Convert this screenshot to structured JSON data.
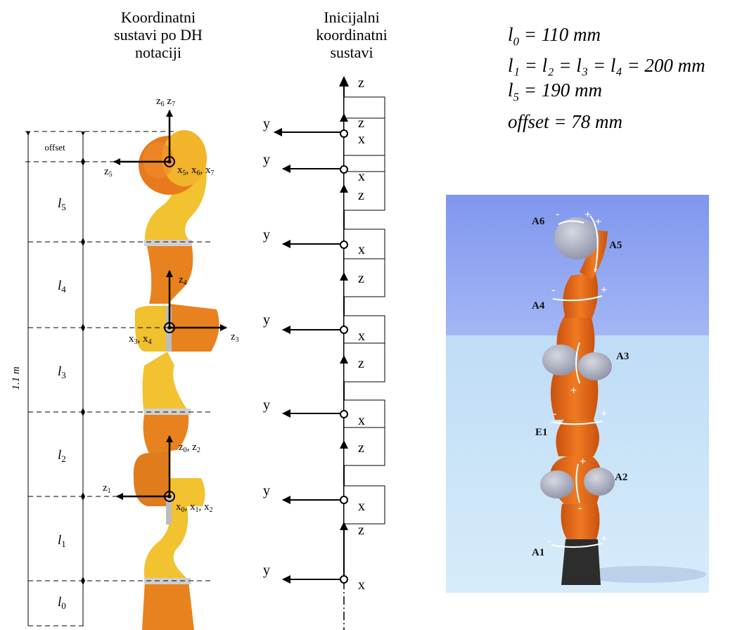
{
  "headings": {
    "dh_line1": "Koordinatni",
    "dh_line2": "sustavi po DH",
    "dh_line3": "notaciji",
    "init_line1": "Inicijalni",
    "init_line2": "koordinatni",
    "init_line3": "sustavi"
  },
  "parameters": {
    "l0": {
      "sym": "l",
      "sub": "0",
      "value": " = 110 mm"
    },
    "l1to4": {
      "text": "l₁ = l₂ = l₃ = l₄ = 200 mm"
    },
    "l5": {
      "sym": "l",
      "sub": "5",
      "value": " = 190 mm"
    },
    "offset": {
      "text": "offset = 78 mm"
    }
  },
  "dh_figure": {
    "total_height": "1.1 m",
    "offset_label": "offset",
    "segment_labels": [
      "l5",
      "l4",
      "l3",
      "l2",
      "l1",
      "l0"
    ],
    "frame_labels": {
      "z6z7": "z6 z7",
      "z5": "z5",
      "x567": "x5, x6, x7",
      "z4": "z4",
      "z3": "z3",
      "x34": "x3, x4",
      "z0z2": "z0, z2",
      "z1": "z1",
      "x012": "x0, x1, x2"
    }
  },
  "init_figure": {
    "top_z": "z",
    "y": "y",
    "x": "x",
    "z": "z"
  },
  "robot_photo": {
    "joints": [
      "A6",
      "A5",
      "A4",
      "A3",
      "E1",
      "A2",
      "A1"
    ],
    "plus": "+",
    "minus": "-",
    "colors": {
      "sky": "#8aa2f2",
      "floor": "#bfe0f7",
      "orange": "#e8701c",
      "grey": "#a4a8b8",
      "base": "#2b2b2b"
    }
  }
}
